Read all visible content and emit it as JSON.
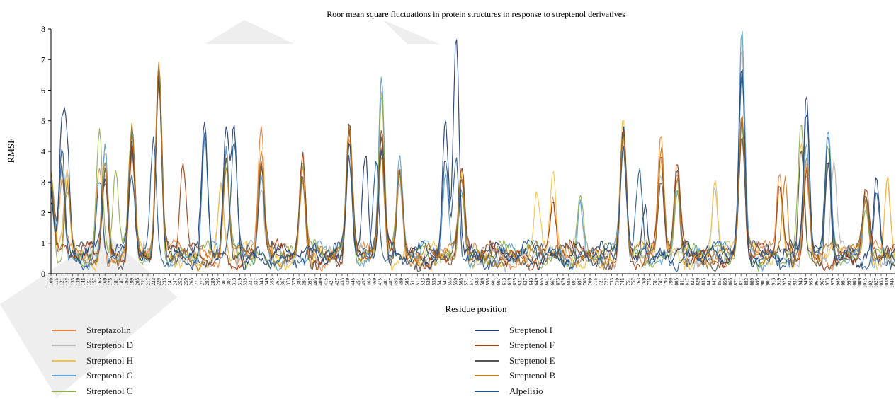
{
  "chart_data": {
    "type": "line",
    "title": "Roor mean square fluctuations in protein structures in response to streptenol derivatives",
    "xlabel": "Residue position",
    "ylabel": "RMSF",
    "ylim": [
      0,
      8
    ],
    "yticks": [
      0,
      1,
      2,
      3,
      4,
      5,
      6,
      7,
      8
    ],
    "xlim": [
      109,
      1048
    ],
    "x_tick_step": 6,
    "grid": false,
    "legend_position": "bottom",
    "series": [
      {
        "name": "Streptazolin",
        "color": "#e8823a",
        "peaks": [
          [
            109,
            2.4
          ],
          [
            121,
            2.3
          ],
          [
            163,
            2.8
          ],
          [
            199,
            3.9
          ],
          [
            229,
            5.8
          ],
          [
            304,
            3.3
          ],
          [
            343,
            4.0
          ],
          [
            389,
            2.9
          ],
          [
            441,
            4.0
          ],
          [
            477,
            3.5
          ],
          [
            497,
            2.9
          ],
          [
            566,
            2.5
          ],
          [
            668,
            1.6
          ],
          [
            746,
            4.0
          ],
          [
            788,
            3.6
          ],
          [
            806,
            2.6
          ],
          [
            878,
            4.4
          ],
          [
            920,
            2.9
          ],
          [
            950,
            3.0
          ],
          [
            1016,
            1.9
          ],
          [
            1040,
            2.6
          ]
        ]
      },
      {
        "name": "Streptenol D",
        "color": "#b9b9b9",
        "peaks": [
          [
            109,
            2.2
          ],
          [
            127,
            2.6
          ],
          [
            169,
            3.0
          ],
          [
            199,
            3.6
          ],
          [
            229,
            5.6
          ],
          [
            298,
            2.4
          ],
          [
            343,
            2.2
          ],
          [
            389,
            2.6
          ],
          [
            441,
            3.6
          ],
          [
            477,
            5.1
          ],
          [
            497,
            2.8
          ],
          [
            566,
            2.6
          ],
          [
            698,
            1.8
          ],
          [
            746,
            3.9
          ],
          [
            788,
            2.6
          ],
          [
            848,
            2.4
          ],
          [
            878,
            6.8
          ],
          [
            920,
            2.4
          ],
          [
            950,
            3.3
          ],
          [
            980,
            3.0
          ],
          [
            1016,
            2.0
          ]
        ]
      },
      {
        "name": "Streptenol H",
        "color": "#f5c242",
        "peaks": [
          [
            109,
            2.2
          ],
          [
            127,
            2.9
          ],
          [
            169,
            3.5
          ],
          [
            199,
            3.8
          ],
          [
            229,
            6.1
          ],
          [
            298,
            2.0
          ],
          [
            343,
            3.0
          ],
          [
            389,
            2.6
          ],
          [
            441,
            4.1
          ],
          [
            477,
            5.3
          ],
          [
            566,
            2.6
          ],
          [
            650,
            1.7
          ],
          [
            668,
            2.8
          ],
          [
            746,
            4.3
          ],
          [
            788,
            3.3
          ],
          [
            848,
            2.6
          ],
          [
            878,
            4.1
          ],
          [
            920,
            2.2
          ],
          [
            944,
            3.9
          ],
          [
            1016,
            1.9
          ],
          [
            1040,
            2.4
          ]
        ]
      },
      {
        "name": "Streptenol G",
        "color": "#5a9fd4",
        "peaks": [
          [
            109,
            2.3
          ],
          [
            121,
            3.1
          ],
          [
            169,
            3.3
          ],
          [
            199,
            3.7
          ],
          [
            229,
            5.9
          ],
          [
            280,
            3.8
          ],
          [
            304,
            3.5
          ],
          [
            343,
            2.5
          ],
          [
            441,
            3.9
          ],
          [
            477,
            6.0
          ],
          [
            497,
            3.1
          ],
          [
            548,
            2.6
          ],
          [
            566,
            2.4
          ],
          [
            698,
            1.9
          ],
          [
            746,
            4.1
          ],
          [
            806,
            2.5
          ],
          [
            878,
            7.3
          ],
          [
            950,
            3.4
          ],
          [
            974,
            3.8
          ],
          [
            1016,
            2.1
          ]
        ]
      },
      {
        "name": "Streptenol C",
        "color": "#8db04e",
        "peaks": [
          [
            109,
            2.4
          ],
          [
            127,
            2.2
          ],
          [
            163,
            3.8
          ],
          [
            181,
            2.7
          ],
          [
            199,
            4.2
          ],
          [
            229,
            6.0
          ],
          [
            304,
            3.0
          ],
          [
            389,
            3.1
          ],
          [
            441,
            4.3
          ],
          [
            477,
            5.5
          ],
          [
            497,
            2.5
          ],
          [
            566,
            2.5
          ],
          [
            698,
            1.9
          ],
          [
            746,
            4.2
          ],
          [
            806,
            2.4
          ],
          [
            878,
            4.2
          ],
          [
            944,
            4.1
          ],
          [
            974,
            3.4
          ],
          [
            1016,
            2.0
          ]
        ]
      },
      {
        "name": "Streptenol I",
        "color": "#1f3a6b",
        "peaks": [
          [
            109,
            2.1
          ],
          [
            121,
            3.9
          ],
          [
            127,
            3.2
          ],
          [
            169,
            2.6
          ],
          [
            199,
            4.0
          ],
          [
            229,
            6.1
          ],
          [
            280,
            4.0
          ],
          [
            304,
            3.9
          ],
          [
            313,
            4.3
          ],
          [
            441,
            4.2
          ],
          [
            459,
            3.2
          ],
          [
            477,
            3.3
          ],
          [
            548,
            4.5
          ],
          [
            560,
            7.5
          ],
          [
            746,
            4.4
          ],
          [
            770,
            2.0
          ],
          [
            878,
            6.3
          ],
          [
            950,
            5.4
          ],
          [
            974,
            3.4
          ],
          [
            1028,
            2.3
          ]
        ]
      },
      {
        "name": "Streptenol F",
        "color": "#9c3d12",
        "peaks": [
          [
            109,
            2.2
          ],
          [
            169,
            2.6
          ],
          [
            199,
            3.8
          ],
          [
            229,
            6.1
          ],
          [
            256,
            3.1
          ],
          [
            343,
            3.1
          ],
          [
            389,
            3.1
          ],
          [
            441,
            4.2
          ],
          [
            477,
            3.8
          ],
          [
            497,
            3.0
          ],
          [
            566,
            2.7
          ],
          [
            668,
            1.8
          ],
          [
            746,
            4.1
          ],
          [
            788,
            3.2
          ],
          [
            806,
            2.7
          ],
          [
            878,
            4.7
          ],
          [
            920,
            2.2
          ],
          [
            950,
            2.9
          ],
          [
            1016,
            1.9
          ]
        ]
      },
      {
        "name": "Streptenol E",
        "color": "#555555",
        "peaks": [
          [
            109,
            2.0
          ],
          [
            121,
            2.7
          ],
          [
            169,
            2.8
          ],
          [
            199,
            4.1
          ],
          [
            229,
            5.9
          ],
          [
            304,
            3.4
          ],
          [
            343,
            2.8
          ],
          [
            389,
            2.7
          ],
          [
            441,
            4.0
          ],
          [
            477,
            3.6
          ],
          [
            497,
            2.7
          ],
          [
            566,
            2.3
          ],
          [
            746,
            4.0
          ],
          [
            788,
            2.5
          ],
          [
            806,
            2.6
          ],
          [
            878,
            4.0
          ],
          [
            944,
            3.6
          ],
          [
            974,
            3.1
          ],
          [
            1016,
            1.8
          ]
        ]
      },
      {
        "name": "Streptenol B",
        "color": "#c07a1a",
        "peaks": [
          [
            109,
            2.3
          ],
          [
            127,
            2.4
          ],
          [
            169,
            3.0
          ],
          [
            199,
            3.9
          ],
          [
            229,
            6.0
          ],
          [
            304,
            3.0
          ],
          [
            343,
            3.2
          ],
          [
            389,
            2.9
          ],
          [
            441,
            4.0
          ],
          [
            477,
            3.5
          ],
          [
            497,
            2.8
          ],
          [
            566,
            2.6
          ],
          [
            746,
            4.0
          ],
          [
            788,
            3.4
          ],
          [
            806,
            2.7
          ],
          [
            878,
            4.5
          ],
          [
            926,
            2.8
          ],
          [
            950,
            3.2
          ],
          [
            1016,
            1.9
          ]
        ]
      },
      {
        "name": "Alpelisio",
        "color": "#27578a",
        "peaks": [
          [
            109,
            2.0
          ],
          [
            121,
            3.7
          ],
          [
            163,
            2.4
          ],
          [
            199,
            2.6
          ],
          [
            223,
            3.5
          ],
          [
            280,
            3.9
          ],
          [
            313,
            3.4
          ],
          [
            441,
            3.2
          ],
          [
            471,
            3.3
          ],
          [
            548,
            2.8
          ],
          [
            560,
            3.3
          ],
          [
            746,
            3.6
          ],
          [
            764,
            2.6
          ],
          [
            878,
            5.6
          ],
          [
            950,
            4.9
          ],
          [
            974,
            3.6
          ],
          [
            1028,
            2.1
          ]
        ]
      }
    ]
  }
}
